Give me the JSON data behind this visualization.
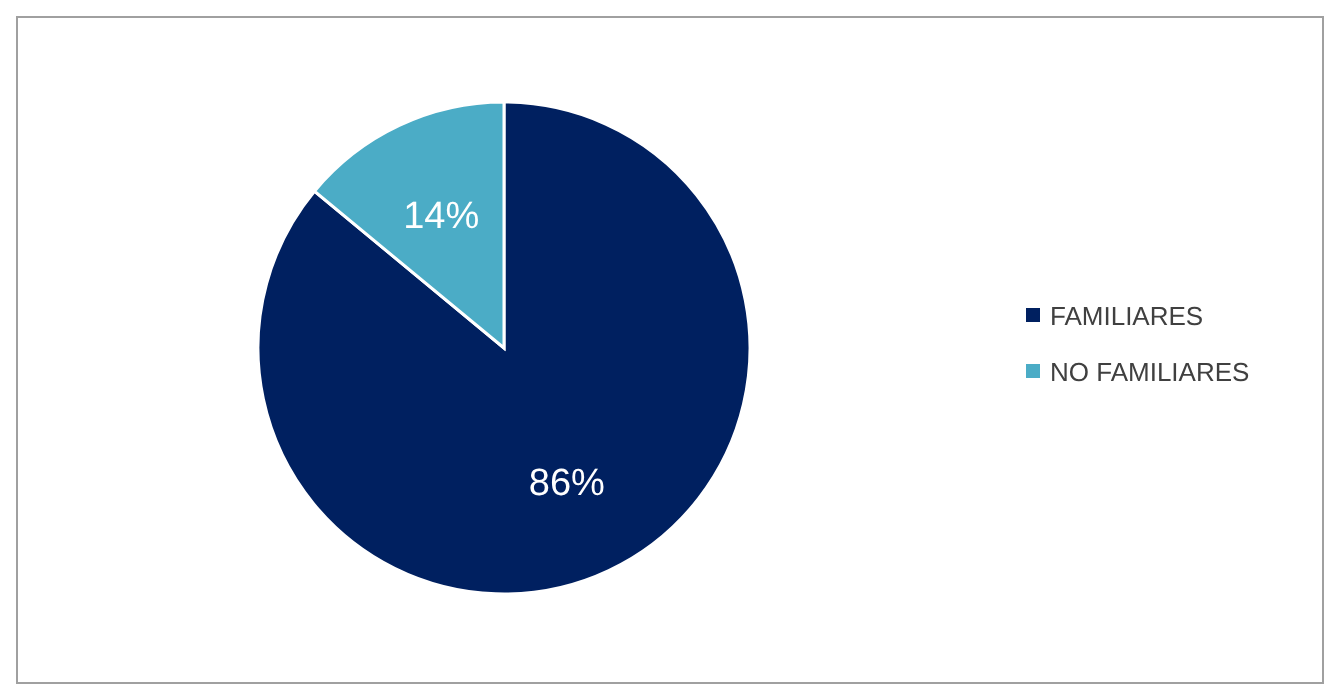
{
  "chart_data": {
    "type": "pie",
    "categories": [
      "FAMILIARES",
      "NO FAMILIARES"
    ],
    "values": [
      86,
      14
    ],
    "colors": [
      "#002060",
      "#4bacc6"
    ],
    "value_labels": [
      "86%",
      "14%"
    ],
    "legend": "right"
  }
}
